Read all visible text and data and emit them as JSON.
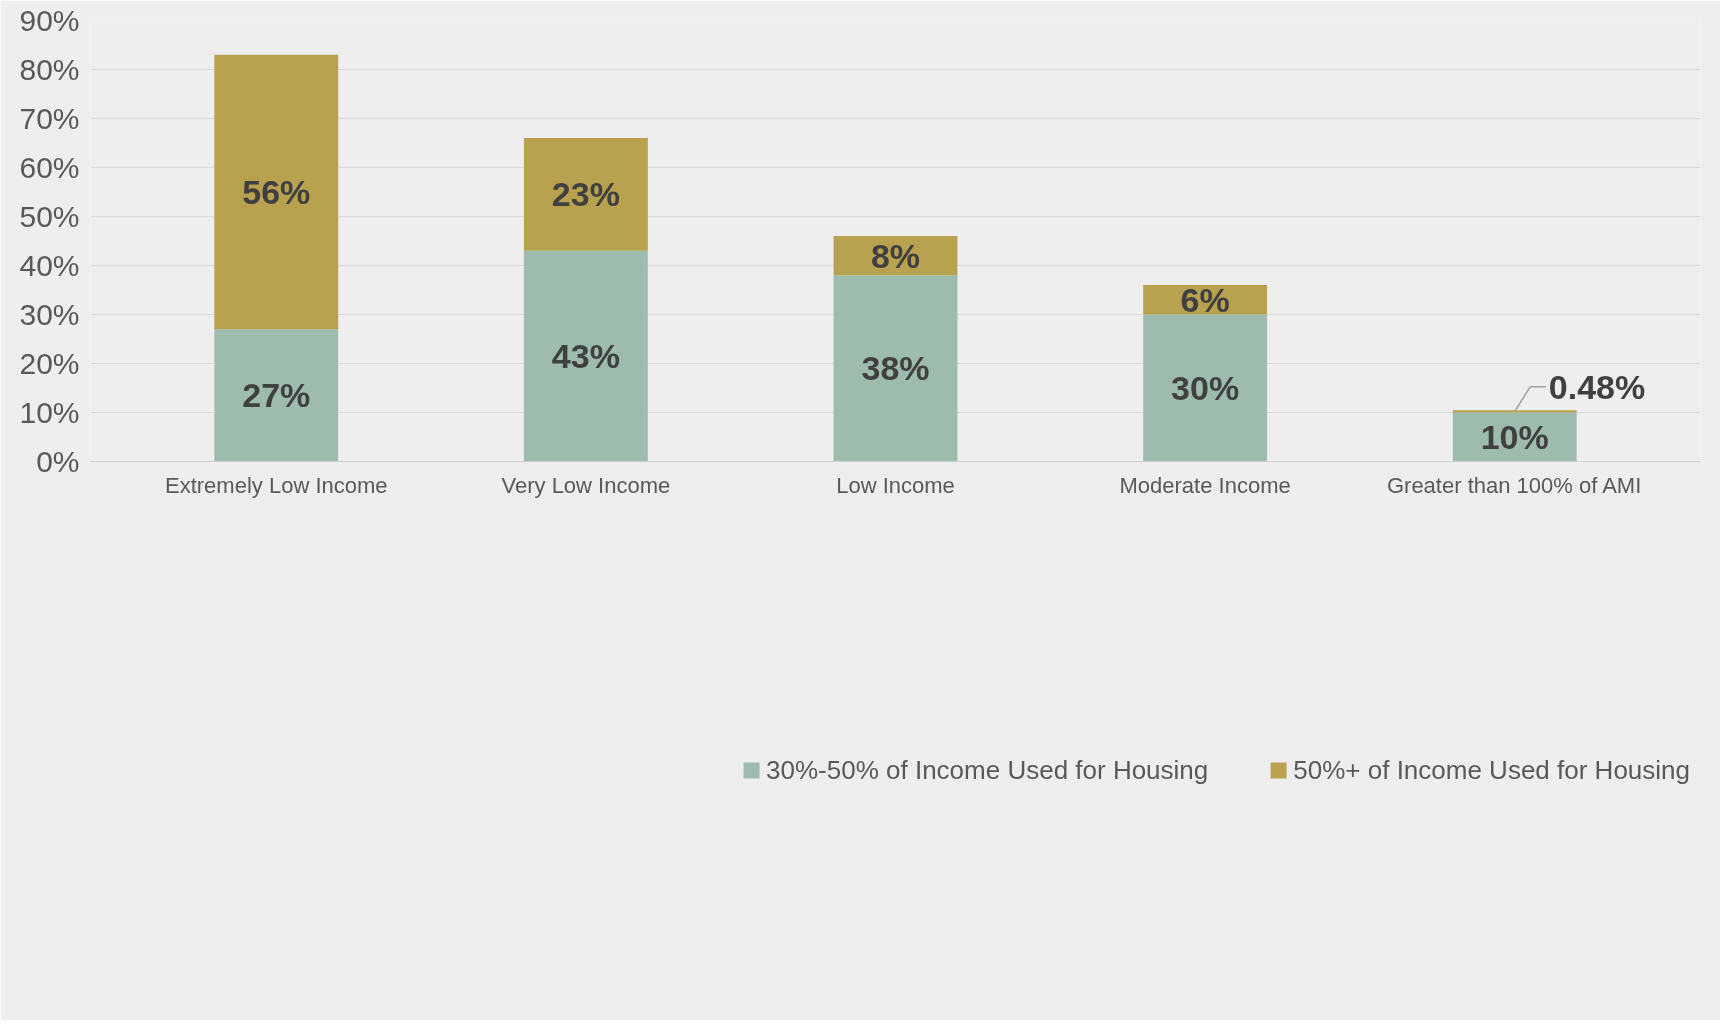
{
  "chart_data": {
    "type": "bar",
    "stacked": true,
    "categories": [
      "Extremely Low Income",
      "Very Low Income",
      "Low Income",
      "Moderate Income",
      "Greater than 100% of AMI"
    ],
    "series": [
      {
        "name": "30%-50% of Income Used for Housing",
        "color": "#9dbcad",
        "values": [
          27,
          43,
          38,
          30,
          10
        ],
        "value_labels": [
          "27%",
          "43%",
          "38%",
          "30%",
          "10%"
        ]
      },
      {
        "name": "50%+ of Income Used for Housing",
        "color": "#b8a250",
        "values": [
          56,
          23,
          8,
          6,
          0.48
        ],
        "value_labels": [
          "56%",
          "23%",
          "8%",
          "6%",
          "0.48%"
        ]
      }
    ],
    "ylim": [
      0,
      90
    ],
    "yticks": [
      {
        "value": 0,
        "label": "0%"
      },
      {
        "value": 10,
        "label": "10%"
      },
      {
        "value": 20,
        "label": "20%"
      },
      {
        "value": 30,
        "label": "30%"
      },
      {
        "value": 40,
        "label": "40%"
      },
      {
        "value": 50,
        "label": "50%"
      },
      {
        "value": 60,
        "label": "60%"
      },
      {
        "value": 70,
        "label": "70%"
      },
      {
        "value": 80,
        "label": "80%"
      },
      {
        "value": 90,
        "label": "90%"
      }
    ],
    "grid": "y",
    "legend": "bottom"
  }
}
